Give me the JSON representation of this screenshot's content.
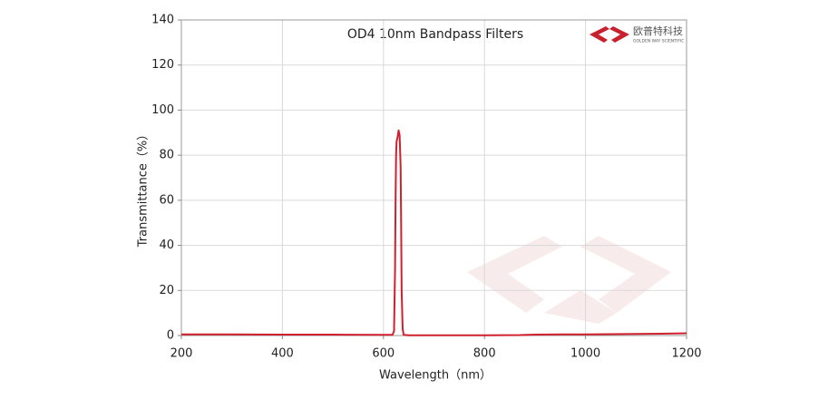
{
  "chart_data": {
    "type": "line",
    "title": "OD4 10nm Bandpass Filters",
    "x_label": "Wavelength（nm）",
    "y_label": "Transmittance（%）",
    "logo_text": "欧普特科技",
    "logo_subtext": "GOLDEN WAY SCIENTIFIC",
    "xlim": [
      200,
      1200
    ],
    "ylim": [
      0,
      140
    ],
    "xticks": [
      200,
      400,
      600,
      800,
      1000,
      1200
    ],
    "yticks": [
      0,
      20,
      40,
      60,
      80,
      100,
      120,
      140
    ],
    "grid": true,
    "x": [
      200,
      300,
      400,
      500,
      600,
      618,
      621,
      623,
      624,
      625,
      626,
      628,
      630,
      632,
      634,
      635,
      636,
      638,
      640,
      650,
      700,
      800,
      870,
      900,
      950,
      1000,
      1050,
      1100,
      1150,
      1200
    ],
    "series": [
      {
        "name": "OD4 10nm",
        "color": "#d0202e",
        "values": [
          0.5,
          0.5,
          0.4,
          0.4,
          0.3,
          0.3,
          2,
          30,
          60,
          80,
          86,
          88,
          91,
          89,
          75,
          50,
          20,
          3,
          0.3,
          0.1,
          0.1,
          0.1,
          0.2,
          0.4,
          0.5,
          0.5,
          0.6,
          0.7,
          0.8,
          1.0
        ]
      }
    ]
  }
}
